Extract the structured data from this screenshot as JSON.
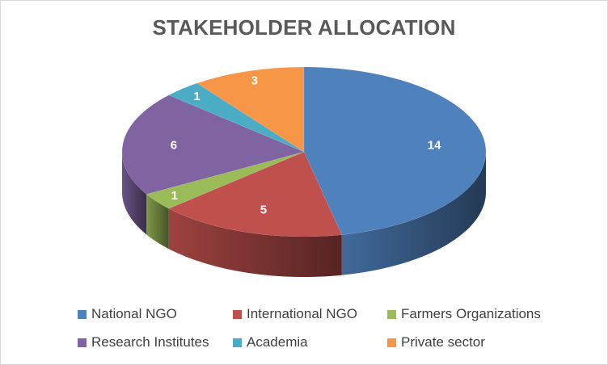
{
  "chart_data": {
    "type": "pie",
    "title": "STAKEHOLDER ALLOCATION",
    "style": "3d",
    "legend_position": "bottom",
    "categories": [
      "National NGO",
      "International NGO",
      "Farmers Organizations",
      "Research Institutes",
      "Academia",
      "Private sector"
    ],
    "values": [
      14,
      5,
      1,
      6,
      1,
      3
    ],
    "colors": [
      "#4F81BD",
      "#C0504D",
      "#9BBB59",
      "#8064A2",
      "#4BACC6",
      "#F79646"
    ]
  }
}
